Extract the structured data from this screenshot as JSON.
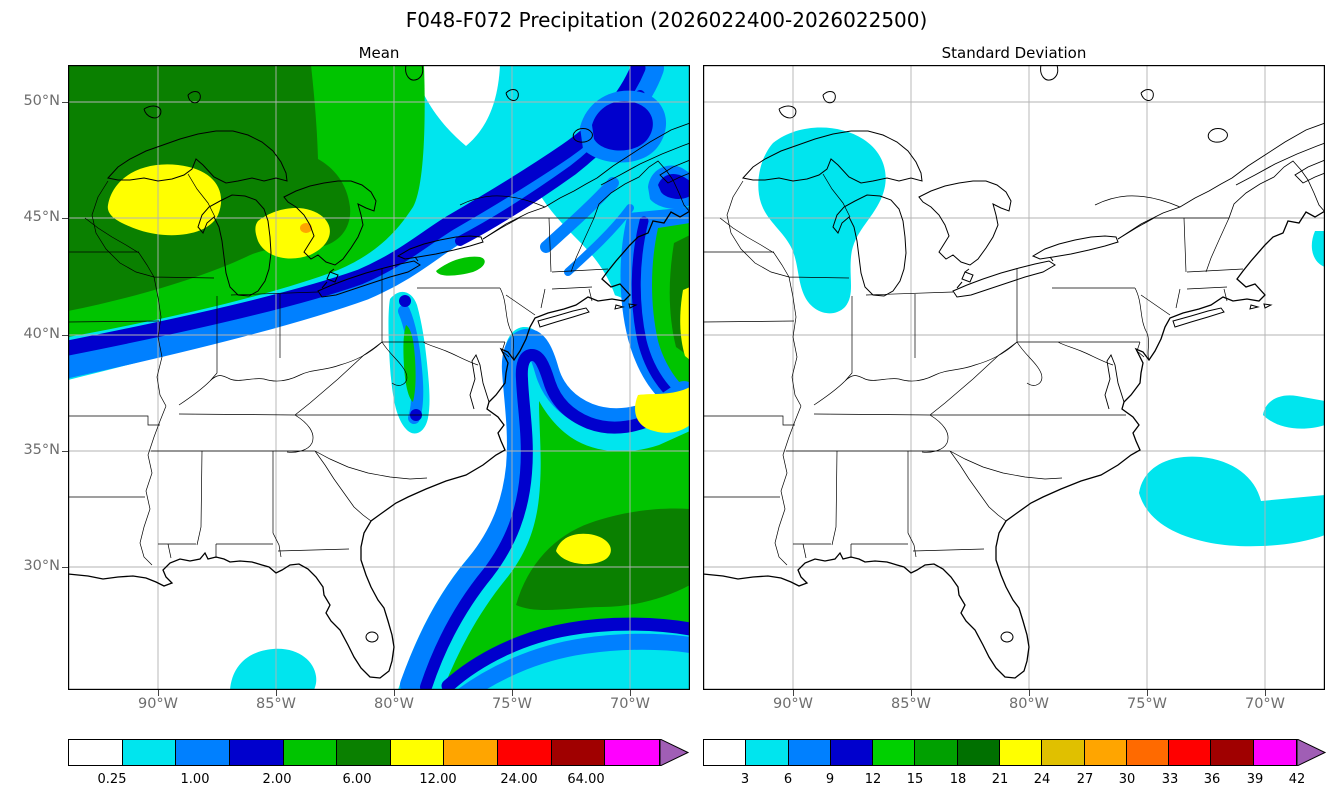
{
  "figure": {
    "title": "F048-F072 Precipitation (2026022400-2026022500)"
  },
  "panels": [
    {
      "title": "Mean"
    },
    {
      "title": "Standard Deviation"
    }
  ],
  "axes": {
    "lat_tick_labels": [
      "50°N",
      "45°N",
      "40°N",
      "35°N",
      "30°N"
    ],
    "lon_tick_labels": [
      "90°W",
      "85°W",
      "80°W",
      "75°W",
      "70°W"
    ]
  },
  "palette": {
    "white": "#FF FFFF-unused",
    "map_white": "#FFFFFF",
    "cyan": "#00E5EE",
    "blue": "#0080FF",
    "dark_blue": "#0000CD",
    "green": "#00C400",
    "dark_green": "#0A8000",
    "yellow": "#FFFF00",
    "orange": "#FFA500",
    "grid_gray": "#B3B3B3",
    "coast_black": "#000000"
  },
  "colorbars": [
    {
      "panel": "Mean",
      "tick_labels": [
        "0.25",
        "1.00",
        "2.00",
        "6.00",
        "12.00",
        "24.00",
        "64.00"
      ],
      "segment_colors": [
        "#FFFFFF",
        "#00E5EE",
        "#0080FF",
        "#0000CD",
        "#00C400",
        "#0A8000",
        "#FFFF00",
        "#FFA500",
        "#FF0000",
        "#A00000",
        "#FF00FF"
      ],
      "over_arrow_color": "#A05EB5"
    },
    {
      "panel": "Standard Deviation",
      "tick_labels": [
        "3",
        "6",
        "9",
        "12",
        "15",
        "18",
        "21",
        "24",
        "27",
        "30",
        "33",
        "36",
        "39",
        "42"
      ],
      "segment_colors": [
        "#FFFFFF",
        "#00E5EE",
        "#0080FF",
        "#0000CD",
        "#00D000",
        "#00A000",
        "#007000",
        "#FFFF00",
        "#E0C000",
        "#FFA500",
        "#FF6A00",
        "#FF0000",
        "#A00000",
        "#FF00FF"
      ],
      "over_arrow_color": "#A05EB5"
    }
  ],
  "chart_data": [
    {
      "type": "heatmap",
      "subtype": "filled_contour_map",
      "title": "Mean",
      "variable": "24-h accumulated precipitation, forecast hours F048-F072, ensemble mean",
      "valid_period": "2026022400-2026022500",
      "domain": {
        "lon_w": [
          93.8,
          67.4
        ],
        "lat_n": [
          24.7,
          51.6
        ]
      },
      "grid_lines": {
        "lons_w": [
          90,
          85,
          80,
          75,
          70
        ],
        "lats_n": [
          30,
          35,
          40,
          45,
          50
        ]
      },
      "contour_levels": [
        0.25,
        1.0,
        2.0,
        6.0,
        12.0,
        24.0,
        64.0
      ],
      "features": [
        {
          "region": "Upper Midwest / western Great Lakes (MN, WI, upper MI, Lakes Superior-Michigan-Huron)",
          "range": "6-24",
          "note": "broad 6-12 (dark green) area with 12-24 (yellow) maxima over western Lake Superior / northern Wisconsin and over northern Lakes Michigan-Huron"
        },
        {
          "region": "Great Lakes to St. Lawrence valley, New England and Quebec",
          "range": "1-6",
          "note": "elongated NE-oriented 2-6 (dark blue) stripes embedded in 0.25-2 cyan/blue band"
        },
        {
          "region": "Central Appalachians (WV / western VA)",
          "range": "0.25-6",
          "note": "narrow NE-SW streak with a small 2-6 green core"
        },
        {
          "region": "Western Atlantic off the Southeast / Mid-Atlantic coast",
          "range": "2-24",
          "note": "large offshore storm; 6-12 dark-green core, 12-24 yellow patches near 33-37N / 68-72W; bands curl inland over the Carolinas and Chesapeake"
        },
        {
          "region": "Offshore Northeast at eastern map edge (42-46N)",
          "range": "2-24",
          "note": "clipped system with green and yellow bands at the right edge"
        },
        {
          "region": "Gulf coast bottom edge near 29N 85W",
          "range": "0.25-1",
          "note": "small cyan patch"
        },
        {
          "region": "Ohio / Tennessee valleys, central NY-PA, Deep South interior",
          "range": "<0.25",
          "note": "white (dry)"
        }
      ]
    },
    {
      "type": "heatmap",
      "subtype": "filled_contour_map",
      "title": "Standard Deviation",
      "variable": "24-h accumulated precipitation, forecast hours F048-F072, ensemble standard deviation",
      "valid_period": "2026022400-2026022500",
      "domain": {
        "lon_w": [
          93.8,
          67.4
        ],
        "lat_n": [
          24.7,
          51.6
        ]
      },
      "grid_lines": {
        "lons_w": [
          90,
          85,
          80,
          75,
          70
        ],
        "lats_n": [
          30,
          35,
          40,
          45,
          50
        ]
      },
      "contour_levels": [
        3,
        6,
        9,
        12,
        15,
        18,
        21,
        24,
        27,
        30,
        33,
        36,
        39,
        42
      ],
      "features": [
        {
          "region": "Eastern Lake Superior / northern Lake Michigan",
          "range": "3-6",
          "note": "cyan blob"
        },
        {
          "region": "Western Atlantic near the eastern map edge, 31-37N",
          "range": "3-6",
          "note": "two cyan patches, one touching the edge"
        },
        {
          "region": "Everywhere else",
          "range": "<3",
          "note": "white"
        }
      ]
    }
  ]
}
